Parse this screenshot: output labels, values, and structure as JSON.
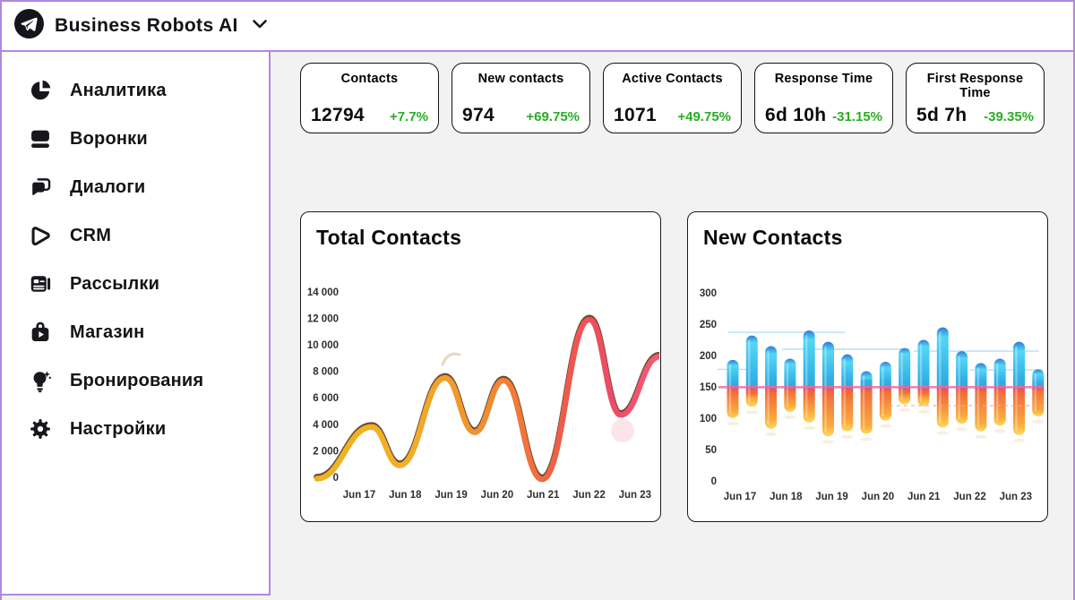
{
  "header": {
    "brand": "Business Robots AI"
  },
  "sidebar": {
    "items": [
      {
        "icon": "pie-chart-icon",
        "label": "Аналитика"
      },
      {
        "icon": "funnel-icon",
        "label": "Воронки"
      },
      {
        "icon": "dialogs-icon",
        "label": "Диалоги"
      },
      {
        "icon": "crm-icon",
        "label": "CRM"
      },
      {
        "icon": "newsletter-icon",
        "label": "Рассылки"
      },
      {
        "icon": "shop-icon",
        "label": "Магазин"
      },
      {
        "icon": "bulb-icon",
        "label": "Бронирования"
      },
      {
        "icon": "gear-icon",
        "label": "Настройки"
      }
    ]
  },
  "stats": [
    {
      "id": "contacts",
      "label": "Contacts",
      "value": "12794",
      "change": "+7.7%"
    },
    {
      "id": "new-contacts",
      "label": "New contacts",
      "value": "974",
      "change": "+69.75%"
    },
    {
      "id": "active-contacts",
      "label": "Active Contacts",
      "value": "1071",
      "change": "+49.75%"
    },
    {
      "id": "response-time",
      "label": "Response Time",
      "value": "6d 10h",
      "change": "-31.15%"
    },
    {
      "id": "first-response-time",
      "label": "First Response Time",
      "value": "5d 7h",
      "change": "-39.35%"
    }
  ],
  "colors": {
    "accent_purple": "#b287e2",
    "positive_green": "#28ad24",
    "baseline_pink": "#ef6da0",
    "reference_cyan": "#a9ddf2",
    "line_gradient": [
      "#ecb224",
      "#f1b028",
      "#f1942e",
      "#f27b38",
      "#f15a4a",
      "#ee4a66",
      "#f05c74"
    ],
    "bar_blue_top": "#2b7fd4",
    "bar_blue": "#45c8ee",
    "bar_red_mid": "#ee4d52",
    "bar_orange": "#f2713a",
    "bar_yellow": "#ffd85e"
  },
  "chart_data": [
    {
      "type": "line",
      "title": "Total Contacts",
      "x_ticks": [
        "Jun 17",
        "Jun 18",
        "Jun 19",
        "Jun 20",
        "Jun 21",
        "Jun 22",
        "Jun 23"
      ],
      "y_ticks": [
        0,
        2000,
        4000,
        6000,
        8000,
        10000,
        12000,
        14000
      ],
      "y_tick_labels": [
        "0",
        "2 000",
        "4 000",
        "6 000",
        "8 000",
        "10 000",
        "12 000",
        "14 000"
      ],
      "ylim": [
        0,
        14000
      ],
      "grid": false,
      "legend": false,
      "points": [
        {
          "day": 16.08,
          "value": -100
        },
        {
          "day": 17.27,
          "value": 3800
        },
        {
          "day": 17.88,
          "value": 900
        },
        {
          "day": 18.87,
          "value": 7500
        },
        {
          "day": 19.51,
          "value": 3400
        },
        {
          "day": 20.14,
          "value": 7300
        },
        {
          "day": 20.98,
          "value": -150
        },
        {
          "day": 22.01,
          "value": 11900
        },
        {
          "day": 22.69,
          "value": 4700
        },
        {
          "day": 23.53,
          "value": 9100
        }
      ]
    },
    {
      "type": "bar",
      "title": "New Contacts",
      "x_ticks": [
        "Jun 17",
        "Jun 18",
        "Jun 19",
        "Jun 20",
        "Jun 21",
        "Jun 22",
        "Jun 23"
      ],
      "y_ticks": [
        0,
        50,
        100,
        150,
        200,
        250,
        300
      ],
      "ylim": [
        0,
        300
      ],
      "baseline": 150,
      "grid": false,
      "legend": false,
      "bars": [
        {
          "top": 193,
          "bottom": 100
        },
        {
          "top": 232,
          "bottom": 118
        },
        {
          "top": 215,
          "bottom": 83
        },
        {
          "top": 195,
          "bottom": 110
        },
        {
          "top": 240,
          "bottom": 93
        },
        {
          "top": 222,
          "bottom": 71
        },
        {
          "top": 202,
          "bottom": 79
        },
        {
          "top": 175,
          "bottom": 75
        },
        {
          "top": 190,
          "bottom": 96
        },
        {
          "top": 212,
          "bottom": 122
        },
        {
          "top": 225,
          "bottom": 119
        },
        {
          "top": 245,
          "bottom": 85
        },
        {
          "top": 207,
          "bottom": 91
        },
        {
          "top": 188,
          "bottom": 79
        },
        {
          "top": 195,
          "bottom": 88
        },
        {
          "top": 222,
          "bottom": 73
        },
        {
          "top": 178,
          "bottom": 103
        }
      ]
    }
  ]
}
